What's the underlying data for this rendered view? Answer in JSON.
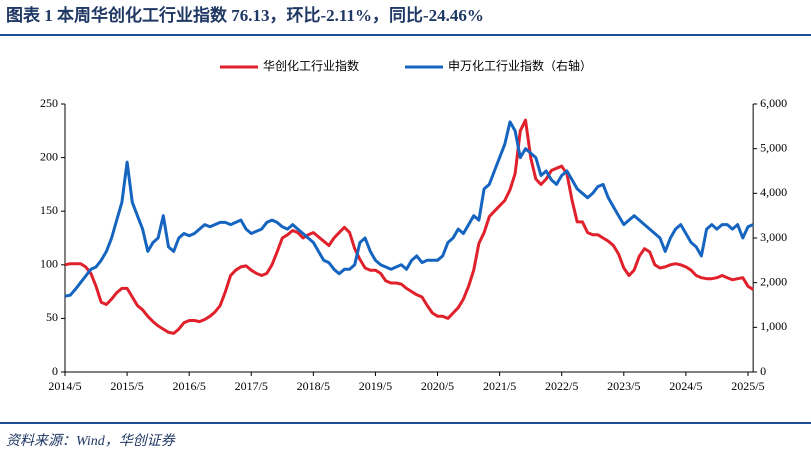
{
  "chart_data": {
    "type": "line",
    "title": "图表 1   本周华创化工行业指数 76.13，环比-2.11%，同比-24.46%",
    "source": "资料来源：Wind，华创证券",
    "categories": [
      "2014/5",
      null,
      null,
      null,
      null,
      null,
      null,
      null,
      null,
      null,
      null,
      null,
      "2015/5",
      null,
      null,
      null,
      null,
      null,
      null,
      null,
      null,
      null,
      null,
      null,
      "2016/5",
      null,
      null,
      null,
      null,
      null,
      null,
      null,
      null,
      null,
      null,
      null,
      "2017/5",
      null,
      null,
      null,
      null,
      null,
      null,
      null,
      null,
      null,
      null,
      null,
      "2018/5",
      null,
      null,
      null,
      null,
      null,
      null,
      null,
      null,
      null,
      null,
      null,
      "2019/5",
      null,
      null,
      null,
      null,
      null,
      null,
      null,
      null,
      null,
      null,
      null,
      "2020/5",
      null,
      null,
      null,
      null,
      null,
      null,
      null,
      null,
      null,
      null,
      null,
      "2021/5",
      null,
      null,
      null,
      null,
      null,
      null,
      null,
      null,
      null,
      null,
      null,
      "2022/5",
      null,
      null,
      null,
      null,
      null,
      null,
      null,
      null,
      null,
      null,
      null,
      "2023/5",
      null,
      null,
      null,
      null,
      null,
      null,
      null,
      null,
      null,
      null,
      null,
      "2024/5",
      null,
      null,
      null,
      null,
      null,
      null,
      null,
      null,
      null,
      null,
      null,
      "2025/5",
      null
    ],
    "series": [
      {
        "name": "华创化工行业指数",
        "color": "#e0202b",
        "values": [
          100,
          101,
          101,
          101,
          98,
          92,
          80,
          65,
          63,
          68,
          74,
          78,
          78,
          70,
          62,
          58,
          52,
          47,
          43,
          40,
          37,
          36,
          40,
          46,
          48,
          48,
          47,
          49,
          52,
          56,
          62,
          75,
          90,
          95,
          98,
          99,
          95,
          92,
          90,
          92,
          100,
          112,
          125,
          128,
          132,
          130,
          125,
          128,
          130,
          126,
          122,
          118,
          125,
          130,
          135,
          130,
          115,
          105,
          97,
          95,
          95,
          92,
          85,
          83,
          83,
          82,
          78,
          75,
          72,
          70,
          62,
          55,
          52,
          52,
          50,
          55,
          60,
          68,
          80,
          95,
          120,
          130,
          145,
          150,
          155,
          160,
          170,
          185,
          225,
          235,
          200,
          180,
          175,
          180,
          188,
          190,
          192,
          185,
          160,
          140,
          140,
          130,
          128,
          128,
          125,
          122,
          118,
          110,
          97,
          90,
          95,
          108,
          115,
          112,
          100,
          97,
          98,
          100,
          101,
          100,
          98,
          95,
          90,
          88,
          87,
          87,
          88,
          90,
          88,
          86,
          87,
          88,
          80,
          77
        ]
      },
      {
        "name": "申万化工行业指数（右轴）",
        "color": "#1565c0",
        "axis": "y2",
        "values": [
          1700,
          1720,
          1850,
          2000,
          2150,
          2300,
          2350,
          2500,
          2700,
          3000,
          3400,
          3800,
          4700,
          3800,
          3500,
          3200,
          2700,
          2900,
          3000,
          3500,
          2800,
          2700,
          3000,
          3100,
          3050,
          3100,
          3200,
          3300,
          3250,
          3300,
          3350,
          3350,
          3300,
          3350,
          3400,
          3200,
          3100,
          3150,
          3200,
          3350,
          3400,
          3350,
          3250,
          3200,
          3300,
          3200,
          3100,
          3000,
          2900,
          2700,
          2500,
          2450,
          2300,
          2200,
          2300,
          2300,
          2400,
          2900,
          3000,
          2700,
          2500,
          2400,
          2350,
          2300,
          2350,
          2400,
          2300,
          2500,
          2600,
          2450,
          2500,
          2500,
          2500,
          2600,
          2900,
          3000,
          3200,
          3100,
          3300,
          3500,
          3400,
          4100,
          4200,
          4500,
          4800,
          5100,
          5600,
          5400,
          4800,
          5000,
          4900,
          4800,
          4400,
          4500,
          4300,
          4200,
          4400,
          4500,
          4300,
          4100,
          4000,
          3900,
          4000,
          4150,
          4200,
          3900,
          3700,
          3500,
          3300,
          3400,
          3500,
          3400,
          3300,
          3200,
          3100,
          3000,
          2700,
          3000,
          3200,
          3300,
          3100,
          2900,
          2800,
          2600,
          3200,
          3300,
          3200,
          3300,
          3300,
          3200,
          3300,
          3000,
          3250,
          3300
        ]
      }
    ],
    "ylim": [
      0,
      250
    ],
    "yticks": [
      0,
      50,
      100,
      150,
      200,
      250
    ],
    "y2lim": [
      0,
      6000
    ],
    "y2ticks": [
      0,
      {
        "value": 1000,
        "label": "1,000"
      },
      {
        "value": 2000,
        "label": "2,000"
      },
      {
        "value": 3000,
        "label": "3,000"
      },
      {
        "value": 4000,
        "label": "4,000"
      },
      {
        "value": 5000,
        "label": "5,000"
      },
      {
        "value": 6000,
        "label": "6,000"
      }
    ],
    "legend": "top"
  }
}
